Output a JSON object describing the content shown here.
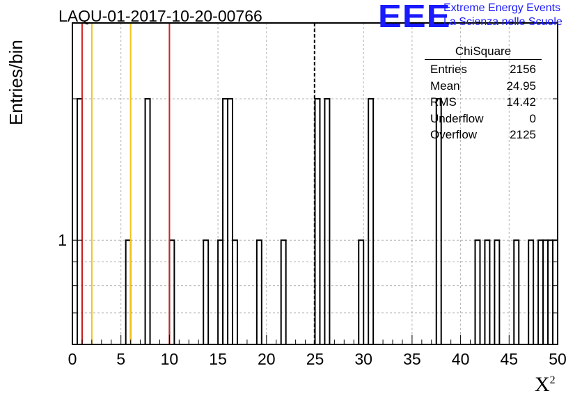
{
  "title": "LAQU-01-2017-10-20-00766",
  "logo": {
    "mark": "EEE",
    "line1": "Extreme Energy Events",
    "line2": "La Scienza nelle Scuole",
    "color": "#1a1aff"
  },
  "stats_box": {
    "name": "ChiSquare",
    "rows": [
      {
        "label": "Entries",
        "value": "2156"
      },
      {
        "label": "Mean",
        "value": "24.95"
      },
      {
        "label": "RMS",
        "value": "14.42"
      },
      {
        "label": "Underflow",
        "value": "0"
      },
      {
        "label": "Overflow",
        "value": "2125"
      }
    ]
  },
  "chart_data": {
    "type": "histogram",
    "title": "LAQU-01-2017-10-20-00766",
    "xlabel": "X",
    "xlabel_superscript": "2",
    "ylabel": "Entries/bin",
    "xlim": [
      0,
      50
    ],
    "ylim": [
      0.6,
      2.9
    ],
    "y_scale": "log",
    "grid": true,
    "bin_width": 0.5,
    "x_ticks": [
      "0",
      "5",
      "10",
      "15",
      "20",
      "25",
      "30",
      "35",
      "40",
      "45",
      "50"
    ],
    "y_ticks": [
      "1"
    ],
    "bins": [
      {
        "x0": 0.5,
        "count": 2
      },
      {
        "x0": 5.5,
        "count": 1
      },
      {
        "x0": 7.5,
        "count": 2
      },
      {
        "x0": 10.0,
        "count": 1
      },
      {
        "x0": 13.5,
        "count": 1
      },
      {
        "x0": 15.0,
        "count": 1
      },
      {
        "x0": 15.5,
        "count": 2
      },
      {
        "x0": 16.0,
        "count": 2
      },
      {
        "x0": 16.5,
        "count": 1
      },
      {
        "x0": 19.0,
        "count": 1
      },
      {
        "x0": 21.5,
        "count": 1
      },
      {
        "x0": 25.0,
        "count": 2
      },
      {
        "x0": 26.0,
        "count": 2
      },
      {
        "x0": 29.5,
        "count": 1
      },
      {
        "x0": 30.5,
        "count": 2
      },
      {
        "x0": 37.5,
        "count": 2
      },
      {
        "x0": 41.5,
        "count": 1
      },
      {
        "x0": 42.5,
        "count": 1
      },
      {
        "x0": 43.5,
        "count": 1
      },
      {
        "x0": 45.5,
        "count": 1
      },
      {
        "x0": 47.0,
        "count": 1
      },
      {
        "x0": 48.0,
        "count": 1
      },
      {
        "x0": 48.5,
        "count": 1
      },
      {
        "x0": 49.0,
        "count": 1
      },
      {
        "x0": 49.5,
        "count": 1
      }
    ],
    "vertical_lines": [
      {
        "x": 1.0,
        "color": "#d42020",
        "style": "solid"
      },
      {
        "x": 2.0,
        "color": "#f2c21a",
        "style": "solid"
      },
      {
        "x": 6.0,
        "color": "#f2c21a",
        "style": "solid"
      },
      {
        "x": 10.0,
        "color": "#d42020",
        "style": "solid"
      },
      {
        "x": 24.95,
        "color": "#000000",
        "style": "dashed"
      }
    ]
  }
}
